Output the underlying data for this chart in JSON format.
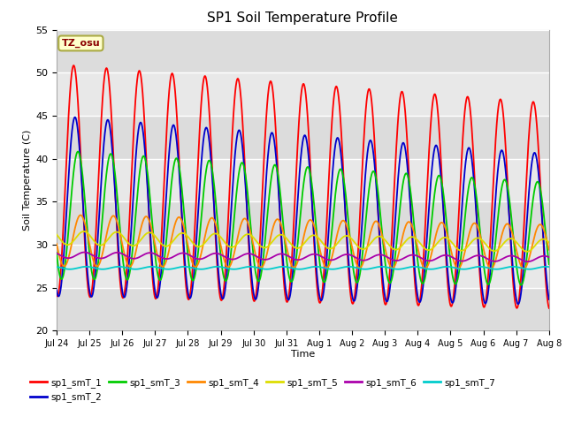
{
  "title": "SP1 Soil Temperature Profile",
  "xlabel": "Time",
  "ylabel": "Soil Temperature (C)",
  "ylim": [
    20,
    55
  ],
  "xlim": [
    0,
    15
  ],
  "annotation": "TZ_osu",
  "background_color": "#dcdcdc",
  "band_colors": [
    "#dcdcdc",
    "#e8e8e8"
  ],
  "grid_color": "white",
  "series_colors": {
    "sp1_smT_1": "#ff0000",
    "sp1_smT_2": "#0000cc",
    "sp1_smT_3": "#00cc00",
    "sp1_smT_4": "#ff8800",
    "sp1_smT_5": "#dddd00",
    "sp1_smT_6": "#aa00aa",
    "sp1_smT_7": "#00cccc"
  },
  "tick_labels": [
    "Jul 24",
    "Jul 25",
    "Jul 26",
    "Jul 27",
    "Jul 28",
    "Jul 29",
    "Jul 30",
    "Jul 31",
    "Aug 1",
    "Aug 2",
    "Aug 3",
    "Aug 4",
    "Aug 5",
    "Aug 6",
    "Aug 7",
    "Aug 8"
  ],
  "tick_positions": [
    0,
    1,
    2,
    3,
    4,
    5,
    6,
    7,
    8,
    9,
    10,
    11,
    12,
    13,
    14,
    15
  ],
  "yticks": [
    20,
    25,
    30,
    35,
    40,
    45,
    50,
    55
  ]
}
